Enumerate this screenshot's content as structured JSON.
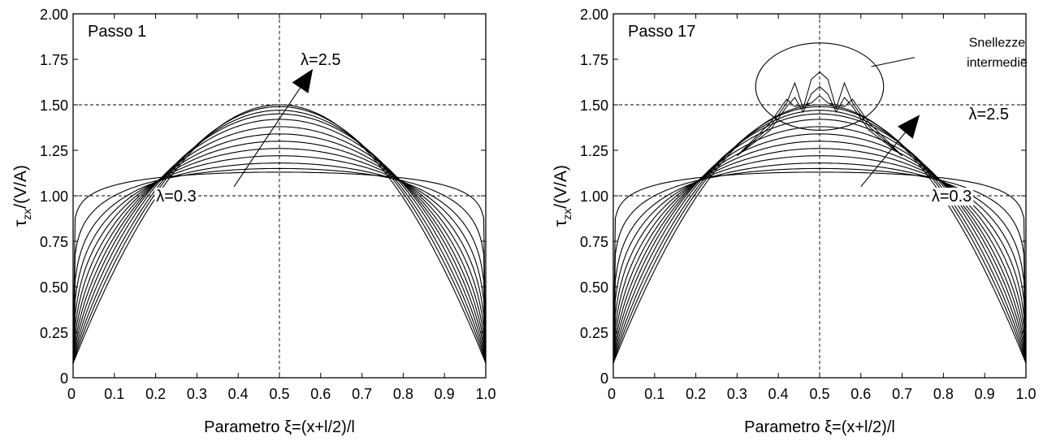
{
  "chart_data": [
    {
      "type": "line",
      "panel_label": "Passo 1",
      "xlabel": "Parametro ξ=(x+l/2)/l",
      "ylabel_main": "τ",
      "ylabel_sub": "zx",
      "ylabel_rest": "/(V/A)",
      "xlim": [
        0,
        1.0
      ],
      "ylim": [
        0,
        2.0
      ],
      "x_ticks": [
        "0",
        "0.1",
        "0.2",
        "0.3",
        "0.4",
        "0.5",
        "0.6",
        "0.7",
        "0.8",
        "0.9",
        "1.0"
      ],
      "y_ticks": [
        "0",
        "0.25",
        "0.50",
        "0.75",
        "1.00",
        "1.25",
        "1.50",
        "1.75",
        "2.00"
      ],
      "reference_lines": {
        "horizontal": [
          1.0,
          1.5
        ],
        "vertical": [
          0.5
        ]
      },
      "grid": false,
      "series_peaks": [
        1.13,
        1.15,
        1.18,
        1.22,
        1.26,
        1.3,
        1.34,
        1.38,
        1.42,
        1.45,
        1.47,
        1.49,
        1.5
      ],
      "annotations": [
        {
          "text": "λ=0.3",
          "x": 0.25,
          "y": 1.0
        },
        {
          "text": "λ=2.5",
          "x": 0.6,
          "y": 1.75
        }
      ],
      "arrow": {
        "from": [
          0.39,
          1.05
        ],
        "to": [
          0.57,
          1.66
        ]
      }
    },
    {
      "type": "line",
      "panel_label": "Passo 17",
      "xlabel": "Parametro ξ=(x+l/2)/l",
      "ylabel_main": "τ",
      "ylabel_sub": "zx",
      "ylabel_rest": "/(V/A)",
      "xlim": [
        0,
        1.0
      ],
      "ylim": [
        0,
        2.0
      ],
      "x_ticks": [
        "0",
        "0.1",
        "0.2",
        "0.3",
        "0.4",
        "0.5",
        "0.6",
        "0.7",
        "0.8",
        "0.9",
        "1.0"
      ],
      "y_ticks": [
        "0",
        "0.25",
        "0.50",
        "0.75",
        "1.00",
        "1.25",
        "1.50",
        "1.75",
        "2.00"
      ],
      "reference_lines": {
        "horizontal": [
          1.0,
          1.5
        ],
        "vertical": [
          0.5
        ]
      },
      "grid": false,
      "series_peaks": [
        1.13,
        1.15,
        1.18,
        1.22,
        1.26,
        1.3,
        1.34,
        1.38,
        1.42,
        1.45,
        1.47,
        1.49,
        1.5
      ],
      "intermediate_spikes": [
        1.6,
        1.68,
        1.55
      ],
      "annotations": [
        {
          "text": "λ=0.3",
          "x": 0.82,
          "y": 1.0
        },
        {
          "text": "λ=2.5",
          "x": 0.91,
          "y": 1.45
        },
        {
          "text": "Snellezze",
          "x": 0.93,
          "y": 1.85
        },
        {
          "text": "intermedie",
          "x": 0.93,
          "y": 1.74
        }
      ],
      "arrow": {
        "from": [
          0.6,
          1.05
        ],
        "to": [
          0.73,
          1.41
        ]
      },
      "ellipse": {
        "cx": 0.5,
        "cy": 1.6,
        "rx": 0.155,
        "ry": 0.24
      }
    }
  ]
}
